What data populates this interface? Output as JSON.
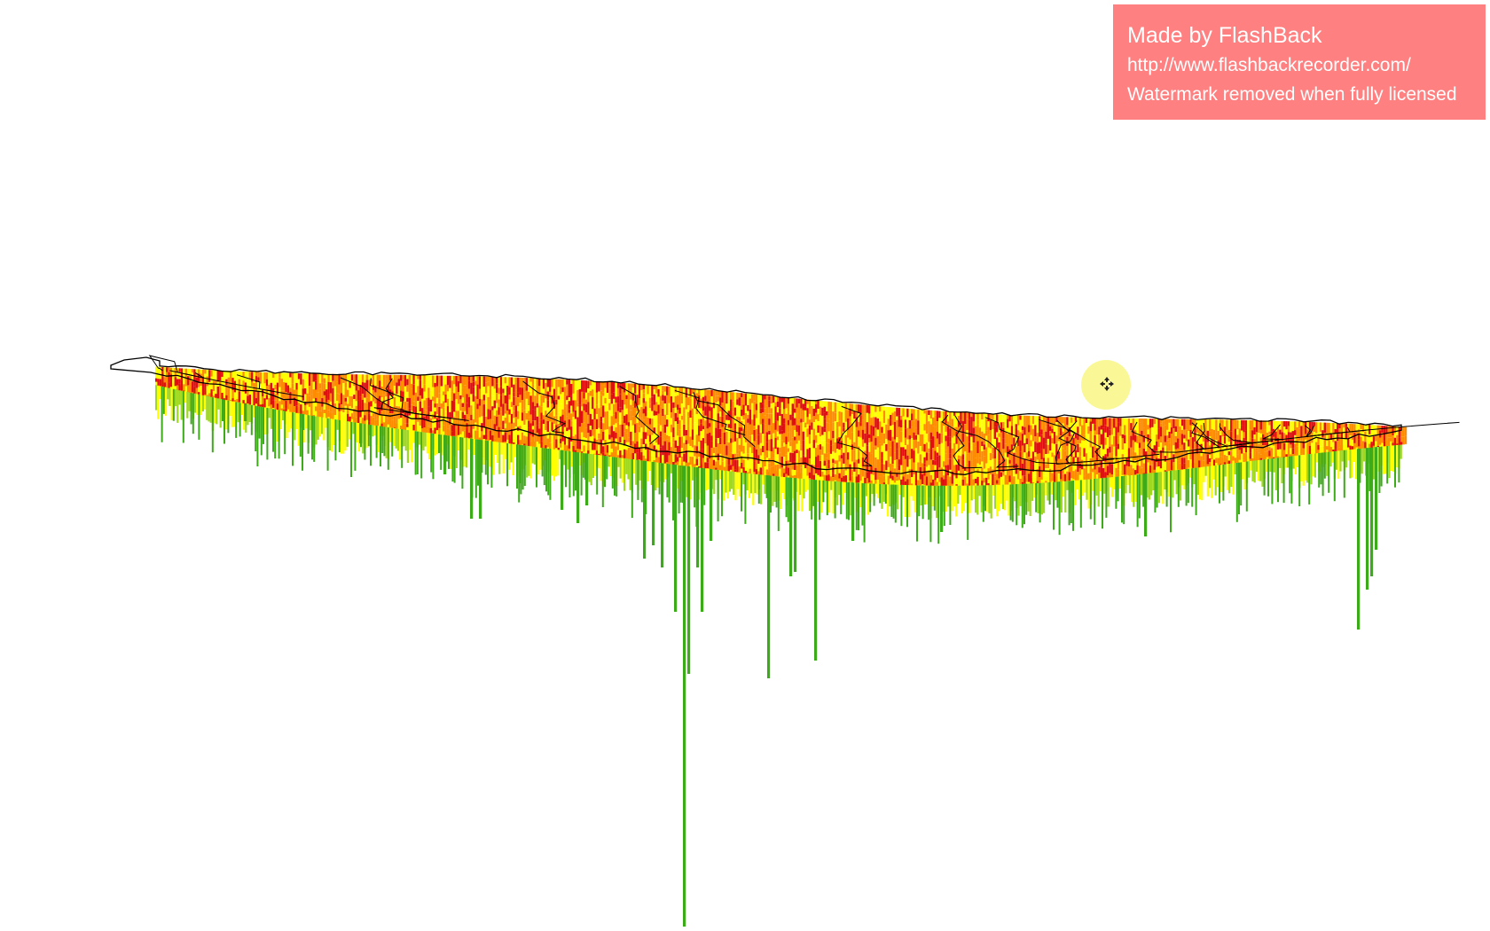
{
  "watermark": {
    "title": "Made by FlashBack",
    "url": "http://www.flashbackrecorder.com/",
    "notice": "Watermark removed when fully licensed",
    "background_color": "#ff8080",
    "text_color": "#ffffff"
  },
  "cursor": {
    "icon": "move-cursor-icon",
    "halo_color": "#faf896"
  },
  "map": {
    "view": "3D perspective extruded region map",
    "boundary_color": "#000000",
    "palette": {
      "low": "#3daa1a",
      "mid_low": "#a0d820",
      "mid": "#ffff00",
      "mid_high": "#ff8c00",
      "high": "#e01010"
    }
  }
}
